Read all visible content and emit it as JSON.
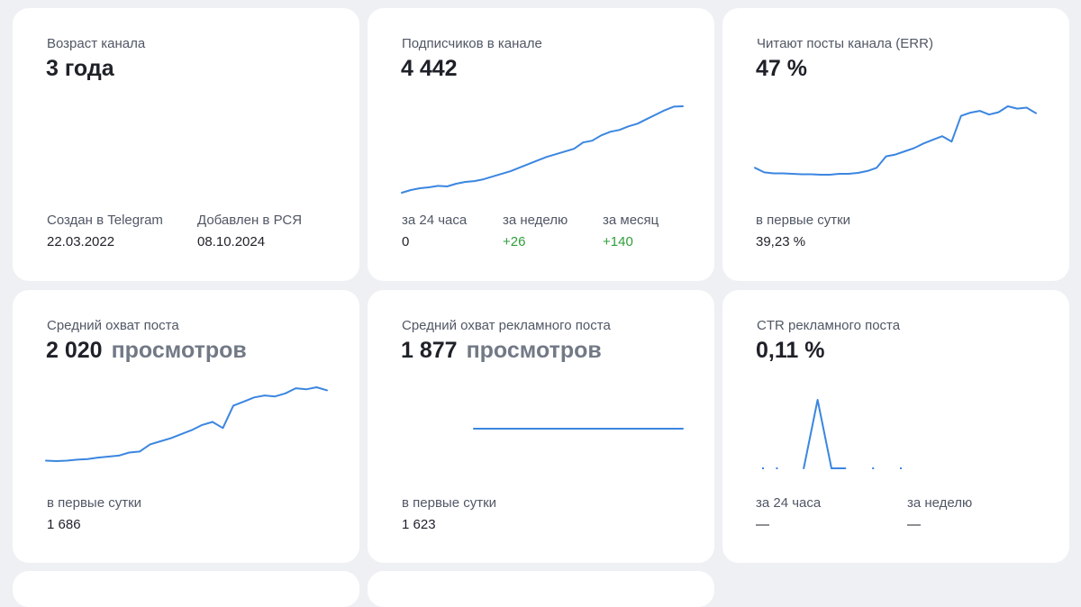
{
  "colors": {
    "background": "#eef0f3",
    "card": "#ffffff",
    "line": "#3b86e0",
    "positive": "#2f9e3a",
    "muted": "#727986"
  },
  "age": {
    "label": "Возраст канала",
    "value": "3 года",
    "created_label": "Создан в Telegram",
    "created_value": "22.03.2022",
    "added_label": "Добавлен в РСЯ",
    "added_value": "08.10.2024"
  },
  "subscribers": {
    "label": "Подписчиков в канале",
    "value": "4 442",
    "day_label": "за 24 часа",
    "day_value": "0",
    "week_label": "за неделю",
    "week_value": "+26",
    "month_label": "за месяц",
    "month_value": "+140"
  },
  "err": {
    "label": "Читают посты канала (ERR)",
    "value": "47 %",
    "first_day_label": "в первые сутки",
    "first_day_value": "39,23 %"
  },
  "avg_reach": {
    "label": "Средний охват поста",
    "value": "2 020",
    "unit": "просмотров",
    "first_day_label": "в первые сутки",
    "first_day_value": "1 686"
  },
  "avg_ad_reach": {
    "label": "Средний охват рекламного поста",
    "value": "1 877",
    "unit": "просмотров",
    "first_day_label": "в первые сутки",
    "first_day_value": "1 623"
  },
  "ctr": {
    "label": "CTR рекламного поста",
    "value": "0,11 %",
    "day_label": "за 24 часа",
    "day_value": "—",
    "week_label": "за неделю",
    "week_value": "—"
  },
  "chart_data": [
    {
      "type": "line",
      "series": [
        {
          "values": [
            3960,
            3975,
            3985,
            3990,
            3998,
            3995,
            4010,
            4020,
            4025,
            4035,
            4050,
            4065,
            4080,
            4100,
            4120,
            4140,
            4160,
            4175,
            4190,
            4205,
            4240,
            4250,
            4280,
            4300,
            4310,
            4330,
            4345,
            4370,
            4395,
            4420,
            4440,
            4442
          ]
        }
      ]
    },
    {
      "type": "line",
      "series": [
        {
          "values": [
            44.5,
            43.5,
            43.3,
            43.3,
            43.2,
            43.1,
            43.1,
            43.0,
            43.0,
            43.2,
            43.2,
            43.4,
            43.8,
            44.5,
            47.0,
            47.4,
            48.1,
            48.8,
            49.8,
            50.6,
            51.4,
            50.2,
            55.8,
            56.5,
            56.9,
            56.1,
            56.6,
            57.9,
            57.4,
            57.6,
            56.4
          ]
        }
      ]
    },
    {
      "type": "line",
      "series": [
        {
          "values": [
            1380,
            1378,
            1380,
            1385,
            1388,
            1395,
            1400,
            1405,
            1420,
            1425,
            1460,
            1475,
            1490,
            1510,
            1530,
            1555,
            1570,
            1540,
            1650,
            1670,
            1690,
            1700,
            1695,
            1710,
            1735,
            1730,
            1740,
            1725
          ]
        }
      ]
    },
    {
      "type": "line",
      "series": [
        {
          "values": [
            1877,
            1877,
            1877,
            1877,
            1877,
            1877,
            1877,
            1877,
            1877,
            1877,
            1877,
            1877
          ]
        }
      ]
    },
    {
      "type": "line",
      "series": [
        {
          "values": [
            0,
            0,
            0,
            0,
            0.11,
            0,
            0,
            0,
            0,
            0,
            0
          ]
        }
      ]
    }
  ]
}
